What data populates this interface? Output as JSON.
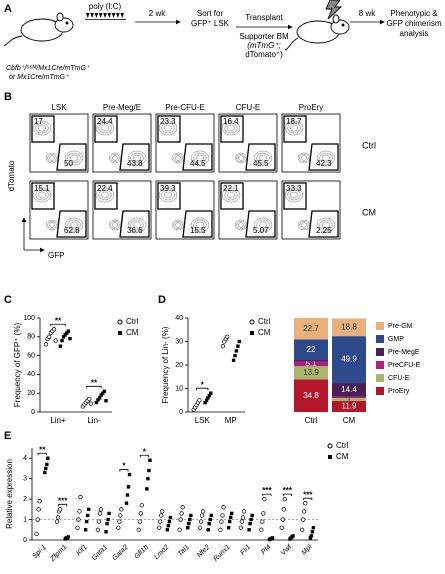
{
  "panel_a": {
    "label": "A",
    "poly": "poly (I:C)",
    "wk2": "2 wk",
    "sort": [
      "Sort for",
      "GFP⁺ LSK"
    ],
    "transplant": "Transplant",
    "supporter": [
      "Supporter BM",
      "(mTmG⁺;",
      "dTomato⁺)"
    ],
    "wk8": "8 wk",
    "analysis": [
      "Phenotypic &",
      "GFP chimerism",
      "analysis"
    ],
    "genotype": [
      "Cbfb⁺/⁵⁶ᴹ/Mx1Cre/mTmG⁺",
      "or Mx1Cre/mTmG⁺"
    ]
  },
  "panel_b": {
    "label": "B",
    "populations": [
      "LSK",
      "Pre-Meg/E",
      "Pre-CFU-E",
      "CFU-E",
      "ProEry"
    ],
    "rows": [
      "Ctrl",
      "CM"
    ],
    "gates": [
      [
        [
          17,
          50
        ],
        [
          24.4,
          43.8
        ],
        [
          23.3,
          44.5
        ],
        [
          16.4,
          45.5
        ],
        [
          18.7,
          42.3
        ]
      ],
      [
        [
          15.1,
          62.8
        ],
        [
          22.4,
          36.6
        ],
        [
          39.3,
          15.5
        ],
        [
          22.1,
          5.07
        ],
        [
          33.3,
          2.25
        ]
      ]
    ],
    "y_label": "dTomato",
    "x_label": "GFP"
  },
  "chart_data": [
    {
      "type": "scatter",
      "panel_label": "C",
      "y_label": "Frequency of GFP⁺ (%)",
      "categories": [
        "Lin+",
        "Lin-"
      ],
      "series": [
        {
          "name": "Ctrl",
          "color": "#000000",
          "values": [
            [
              72,
              78,
              80,
              84,
              86,
              88,
              76
            ],
            [
              6,
              8,
              10,
              12,
              14,
              9
            ]
          ]
        },
        {
          "name": "CM",
          "color": "#000000",
          "values": [
            [
              70,
              76,
              80,
              82,
              84,
              86,
              78
            ],
            [
              10,
              13,
              15,
              18,
              20,
              22,
              12
            ]
          ]
        }
      ],
      "ylim": [
        0,
        100
      ],
      "yticks": [
        0,
        20,
        40,
        60,
        80,
        100
      ],
      "significance": [
        "**",
        "**"
      ]
    },
    {
      "type": "scatter",
      "panel_label": "D",
      "y_label": "Frequency of Lin- (%)",
      "categories": [
        "LSK",
        "MP"
      ],
      "series": [
        {
          "name": "Ctrl",
          "color": "#000000",
          "values": [
            [
              1,
              2,
              3,
              4,
              5
            ],
            [
              28,
              30,
              31,
              32
            ]
          ]
        },
        {
          "name": "CM",
          "color": "#000000",
          "values": [
            [
              4,
              5,
              6,
              7,
              8
            ],
            [
              22,
              24,
              26,
              28,
              30
            ]
          ]
        }
      ],
      "ylim": [
        0,
        40
      ],
      "yticks": [
        0,
        10,
        20,
        30,
        40
      ],
      "significance": [
        "*",
        null
      ]
    },
    {
      "type": "stacked_bar",
      "categories": [
        "Ctrl",
        "CM"
      ],
      "series": [
        {
          "name": "Pre-GM",
          "color": "#e8b07a",
          "values": [
            22.7,
            18.8
          ]
        },
        {
          "name": "GMP",
          "color": "#2d4a8a",
          "values": [
            22,
            49.9
          ]
        },
        {
          "name": "Pre-MegE",
          "color": "#4a1f55",
          "values": [
            1.5,
            14.4
          ]
        },
        {
          "name": "PreCFU-E",
          "color": "#b0207a",
          "values": [
            5.1,
            1.5
          ]
        },
        {
          "name": "CFU-E",
          "color": "#a8b86a",
          "values": [
            13.9,
            3
          ]
        },
        {
          "name": "ProEry",
          "color": "#b5152b",
          "values": [
            34.8,
            11.9
          ]
        }
      ],
      "ylim": [
        0,
        100
      ]
    },
    {
      "type": "scatter",
      "panel_label": "E",
      "y_label": "Relative expression",
      "categories": [
        "Spi-1",
        "Zfpm1",
        "Klf1",
        "Gata1",
        "Gata2",
        "Gfi1b",
        "Lmo2",
        "Tal1",
        "Nfe2",
        "Runx1",
        "Fli1",
        "Pf4",
        "Vwf",
        "Mpl"
      ],
      "series": [
        {
          "name": "Ctrl",
          "color": "#000000",
          "values": [
            [
              0.3,
              1.0,
              1.5,
              1.9
            ],
            [
              0.9,
              1.1,
              1.4,
              1.5
            ],
            [
              0.6,
              1.0,
              1.4,
              2.1
            ],
            [
              0.5,
              0.9,
              1.3,
              1.5
            ],
            [
              0.6,
              0.9,
              1.2,
              1.5
            ],
            [
              0.5,
              0.9,
              1.3,
              1.7
            ],
            [
              0.6,
              0.9,
              1.2,
              1.4
            ],
            [
              0.5,
              1.0,
              1.3,
              1.6
            ],
            [
              0.6,
              0.9,
              1.2,
              1.4
            ],
            [
              0.5,
              0.9,
              1.2,
              1.6
            ],
            [
              0.6,
              0.9,
              1.1,
              1.4
            ],
            [
              0.5,
              0.9,
              1.3,
              2.0
            ],
            [
              0.6,
              1.0,
              1.5,
              2.0
            ],
            [
              0.5,
              1.0,
              1.4,
              1.8
            ]
          ]
        },
        {
          "name": "CM",
          "color": "#000000",
          "values": [
            [
              3.3,
              3.5,
              3.7,
              4.0
            ],
            [
              0.05,
              0.1,
              0.1,
              0.15
            ],
            [
              0.5,
              0.9,
              1.2,
              1.5
            ],
            [
              0.4,
              0.8,
              1.0,
              1.3
            ],
            [
              1.8,
              2.2,
              2.6,
              3.2
            ],
            [
              2.5,
              3.0,
              3.4,
              3.9
            ],
            [
              0.5,
              0.7,
              0.9,
              1.1
            ],
            [
              0.6,
              0.8,
              1.0,
              1.2
            ],
            [
              0.5,
              0.8,
              1.0,
              1.2
            ],
            [
              0.6,
              0.9,
              1.1,
              1.3
            ],
            [
              0.5,
              0.8,
              1.0,
              1.2
            ],
            [
              0.02,
              0.05,
              0.08,
              0.1
            ],
            [
              0.05,
              0.1,
              0.15,
              0.2
            ],
            [
              0.1,
              0.2,
              0.4,
              0.6
            ]
          ]
        }
      ],
      "ylim": [
        0,
        4.5
      ],
      "yticks": [
        0,
        1,
        2,
        3,
        4
      ],
      "reference_line": 1,
      "significance": [
        "**",
        "***",
        null,
        null,
        "*",
        "*",
        null,
        null,
        null,
        null,
        null,
        "***",
        "***",
        "***"
      ]
    }
  ]
}
